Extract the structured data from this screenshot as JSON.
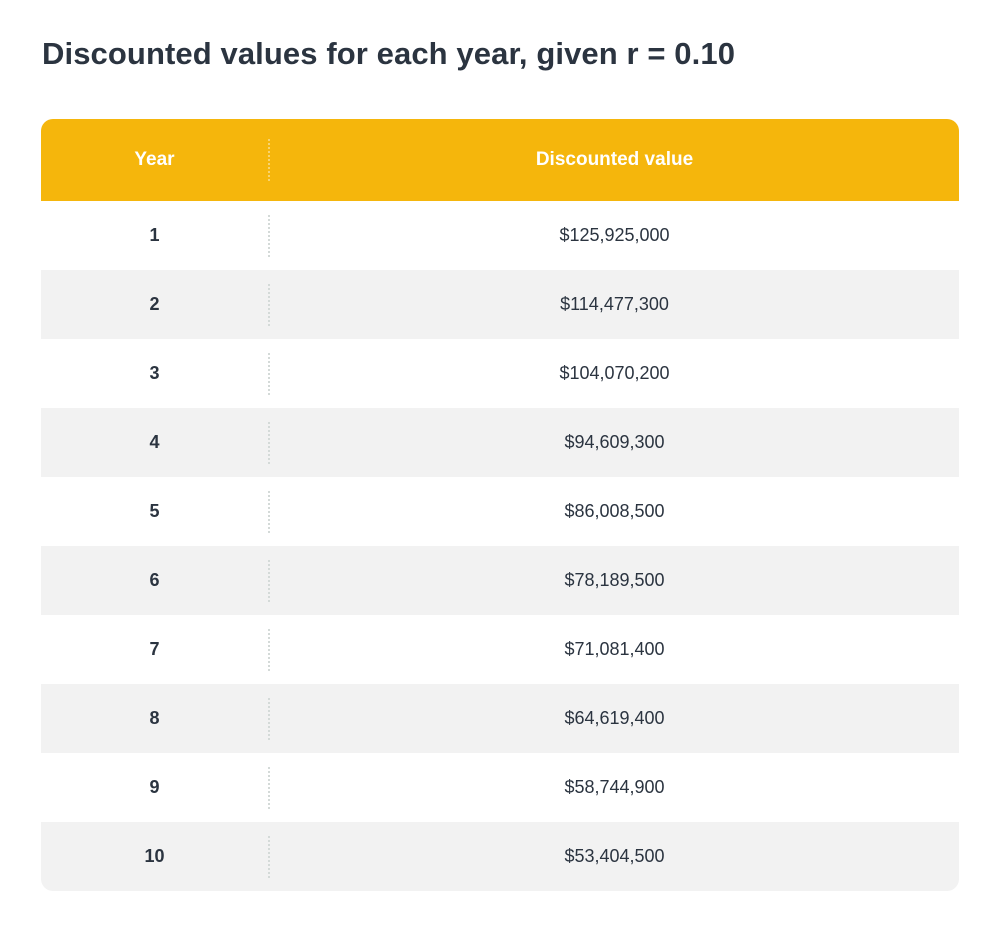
{
  "title": "Discounted values for each year, given r = 0.10",
  "table": {
    "headers": {
      "year": "Year",
      "value": "Discounted value"
    },
    "rows": [
      {
        "year": "1",
        "value": "$125,925,000"
      },
      {
        "year": "2",
        "value": "$114,477,300"
      },
      {
        "year": "3",
        "value": "$104,070,200"
      },
      {
        "year": "4",
        "value": "$94,609,300"
      },
      {
        "year": "5",
        "value": "$86,008,500"
      },
      {
        "year": "6",
        "value": "$78,189,500"
      },
      {
        "year": "7",
        "value": "$71,081,400"
      },
      {
        "year": "8",
        "value": "$64,619,400"
      },
      {
        "year": "9",
        "value": "$58,744,900"
      },
      {
        "year": "10",
        "value": "$53,404,500"
      }
    ]
  },
  "colors": {
    "header_bg": "#f5b60c",
    "header_text": "#ffffff",
    "stripe_bg": "#f2f2f2",
    "text": "#2b3440"
  }
}
